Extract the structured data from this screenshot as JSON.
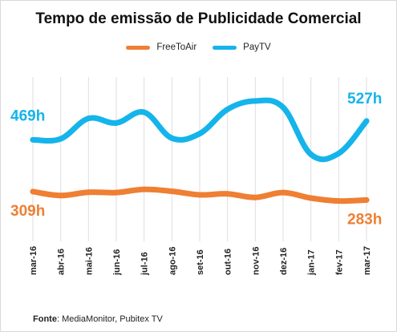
{
  "title": "Tempo de emissão de Publicidade Comercial",
  "source": {
    "label": "Fonte",
    "text": ": MediaMonitor, Pubitex TV"
  },
  "colors": {
    "FreeToAir": "#ef7f33",
    "PayTV": "#15b4eb",
    "grid": "#dedede"
  },
  "chart_data": {
    "type": "line",
    "title": "Tempo de emissão de Publicidade Comercial",
    "x": [
      "mar-16",
      "abr-16",
      "mai-16",
      "jun-16",
      "jul-16",
      "ago-16",
      "set-16",
      "out-16",
      "nov-16",
      "dez-16",
      "jan-17",
      "fev-17",
      "mar-17"
    ],
    "series": [
      {
        "name": "FreeToAir",
        "values": [
          309,
          297,
          307,
          306,
          316,
          310,
          299,
          302,
          291,
          306,
          289,
          280,
          283
        ]
      },
      {
        "name": "PayTV",
        "values": [
          469,
          472,
          535,
          521,
          554,
          474,
          488,
          563,
          589,
          569,
          424,
          427,
          527
        ]
      }
    ],
    "annotations": [
      {
        "series": "PayTV",
        "point": 0,
        "text": "469h"
      },
      {
        "series": "PayTV",
        "point": 12,
        "text": "527h"
      },
      {
        "series": "FreeToAir",
        "point": 0,
        "text": "309h"
      },
      {
        "series": "FreeToAir",
        "point": 12,
        "text": "283h"
      }
    ],
    "ylim": [
      180,
      720
    ],
    "y_axis_visible": false,
    "grid": "vertical",
    "legend": "top-center",
    "xlabel": "",
    "ylabel": ""
  }
}
